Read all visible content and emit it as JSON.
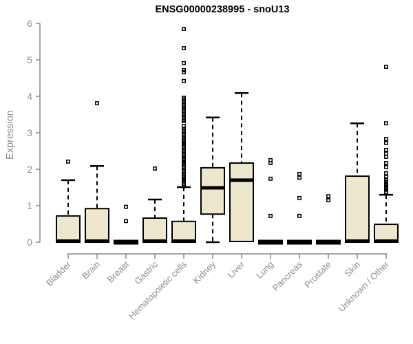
{
  "colors": {
    "box_fill": "#EDE8CD",
    "box_border": "#000000",
    "median": "#000000",
    "axis": "#888888",
    "tick_label": "#8c8c8c",
    "title": "#000000",
    "background": "#ffffff"
  },
  "chart_data": {
    "type": "boxplot",
    "title": "ENSG00000238995 - snoU13",
    "xlabel": "",
    "ylabel": "Expression",
    "ylim": [
      0,
      6
    ],
    "y_ticks": [
      0,
      1,
      2,
      3,
      4,
      5,
      6
    ],
    "grid": false,
    "legend": false,
    "categories": [
      "Bladder",
      "Brain",
      "Breast",
      "Gastric",
      "Hematopoietic cells",
      "Kidney",
      "Liver",
      "Lung",
      "Pancreas",
      "Prostate",
      "Skin",
      "Unknown / Other"
    ],
    "boxes": [
      {
        "label": "Bladder",
        "low": 0,
        "q1": 0,
        "median": 0.03,
        "q3": 0.72,
        "high": 1.7,
        "outliers": [
          2.21
        ]
      },
      {
        "label": "Brain",
        "low": 0,
        "q1": 0,
        "median": 0.03,
        "q3": 0.92,
        "high": 2.09,
        "outliers": [
          3.81
        ]
      },
      {
        "label": "Breast",
        "low": 0,
        "q1": 0,
        "median": 0.02,
        "q3": 0.02,
        "high": 0.02,
        "outliers": [
          0.97,
          0.58
        ]
      },
      {
        "label": "Gastric",
        "low": 0,
        "q1": 0,
        "median": 0.03,
        "q3": 0.66,
        "high": 1.17,
        "outliers": [
          2.02
        ]
      },
      {
        "label": "Hematopoietic cells",
        "low": 0,
        "q1": 0,
        "median": 0.03,
        "q3": 0.57,
        "high": 1.51,
        "outliers": [
          5.85,
          5.32,
          4.91,
          4.72,
          4.66,
          4.42,
          3.96,
          3.92,
          3.88,
          3.84,
          3.8,
          3.76,
          3.72,
          3.68,
          3.64,
          3.6,
          3.56,
          3.52,
          3.48,
          3.44,
          3.4,
          3.36,
          3.32,
          3.19,
          3.09,
          3.05,
          3.01,
          2.97,
          2.93,
          2.89,
          2.85,
          2.81,
          2.77,
          2.73,
          2.7,
          2.66,
          2.62,
          2.58,
          2.54,
          2.5,
          2.46,
          2.42,
          2.38,
          2.34,
          2.3,
          2.26,
          2.22,
          2.19,
          2.15,
          2.11,
          2.07,
          2.03,
          1.99,
          1.95,
          1.91,
          1.87,
          1.83,
          1.79,
          1.75,
          1.72,
          1.68,
          1.64,
          1.6,
          1.56
        ]
      },
      {
        "label": "Kidney",
        "low": 0,
        "q1": 0.77,
        "median": 1.49,
        "q3": 2.04,
        "high": 3.42,
        "outliers": []
      },
      {
        "label": "Liver",
        "low": 0,
        "q1": 0.02,
        "median": 1.7,
        "q3": 2.17,
        "high": 4.09,
        "outliers": []
      },
      {
        "label": "Lung",
        "low": 0,
        "q1": 0,
        "median": 0.02,
        "q3": 0.02,
        "high": 0.02,
        "outliers": [
          2.25,
          2.17,
          1.74,
          0.72
        ]
      },
      {
        "label": "Pancreas",
        "low": 0,
        "q1": 0,
        "median": 0.02,
        "q3": 0.02,
        "high": 0.02,
        "outliers": [
          1.87,
          1.77,
          1.21,
          0.72
        ]
      },
      {
        "label": "Prostate",
        "low": 0,
        "q1": 0,
        "median": 0.02,
        "q3": 0.02,
        "high": 0.02,
        "outliers": [
          1.26,
          1.15
        ]
      },
      {
        "label": "Skin",
        "low": 0,
        "q1": 0,
        "median": 0.03,
        "q3": 1.81,
        "high": 3.26,
        "outliers": []
      },
      {
        "label": "Unknown / Other",
        "low": 0,
        "q1": 0,
        "median": 0.03,
        "q3": 0.49,
        "high": 1.3,
        "outliers": [
          4.81,
          3.26,
          2.83,
          2.72,
          2.53,
          2.43,
          2.34,
          2.17,
          2.06,
          1.89,
          1.79,
          1.72,
          1.66,
          1.6,
          1.55,
          1.49,
          1.44,
          1.38
        ]
      }
    ]
  }
}
